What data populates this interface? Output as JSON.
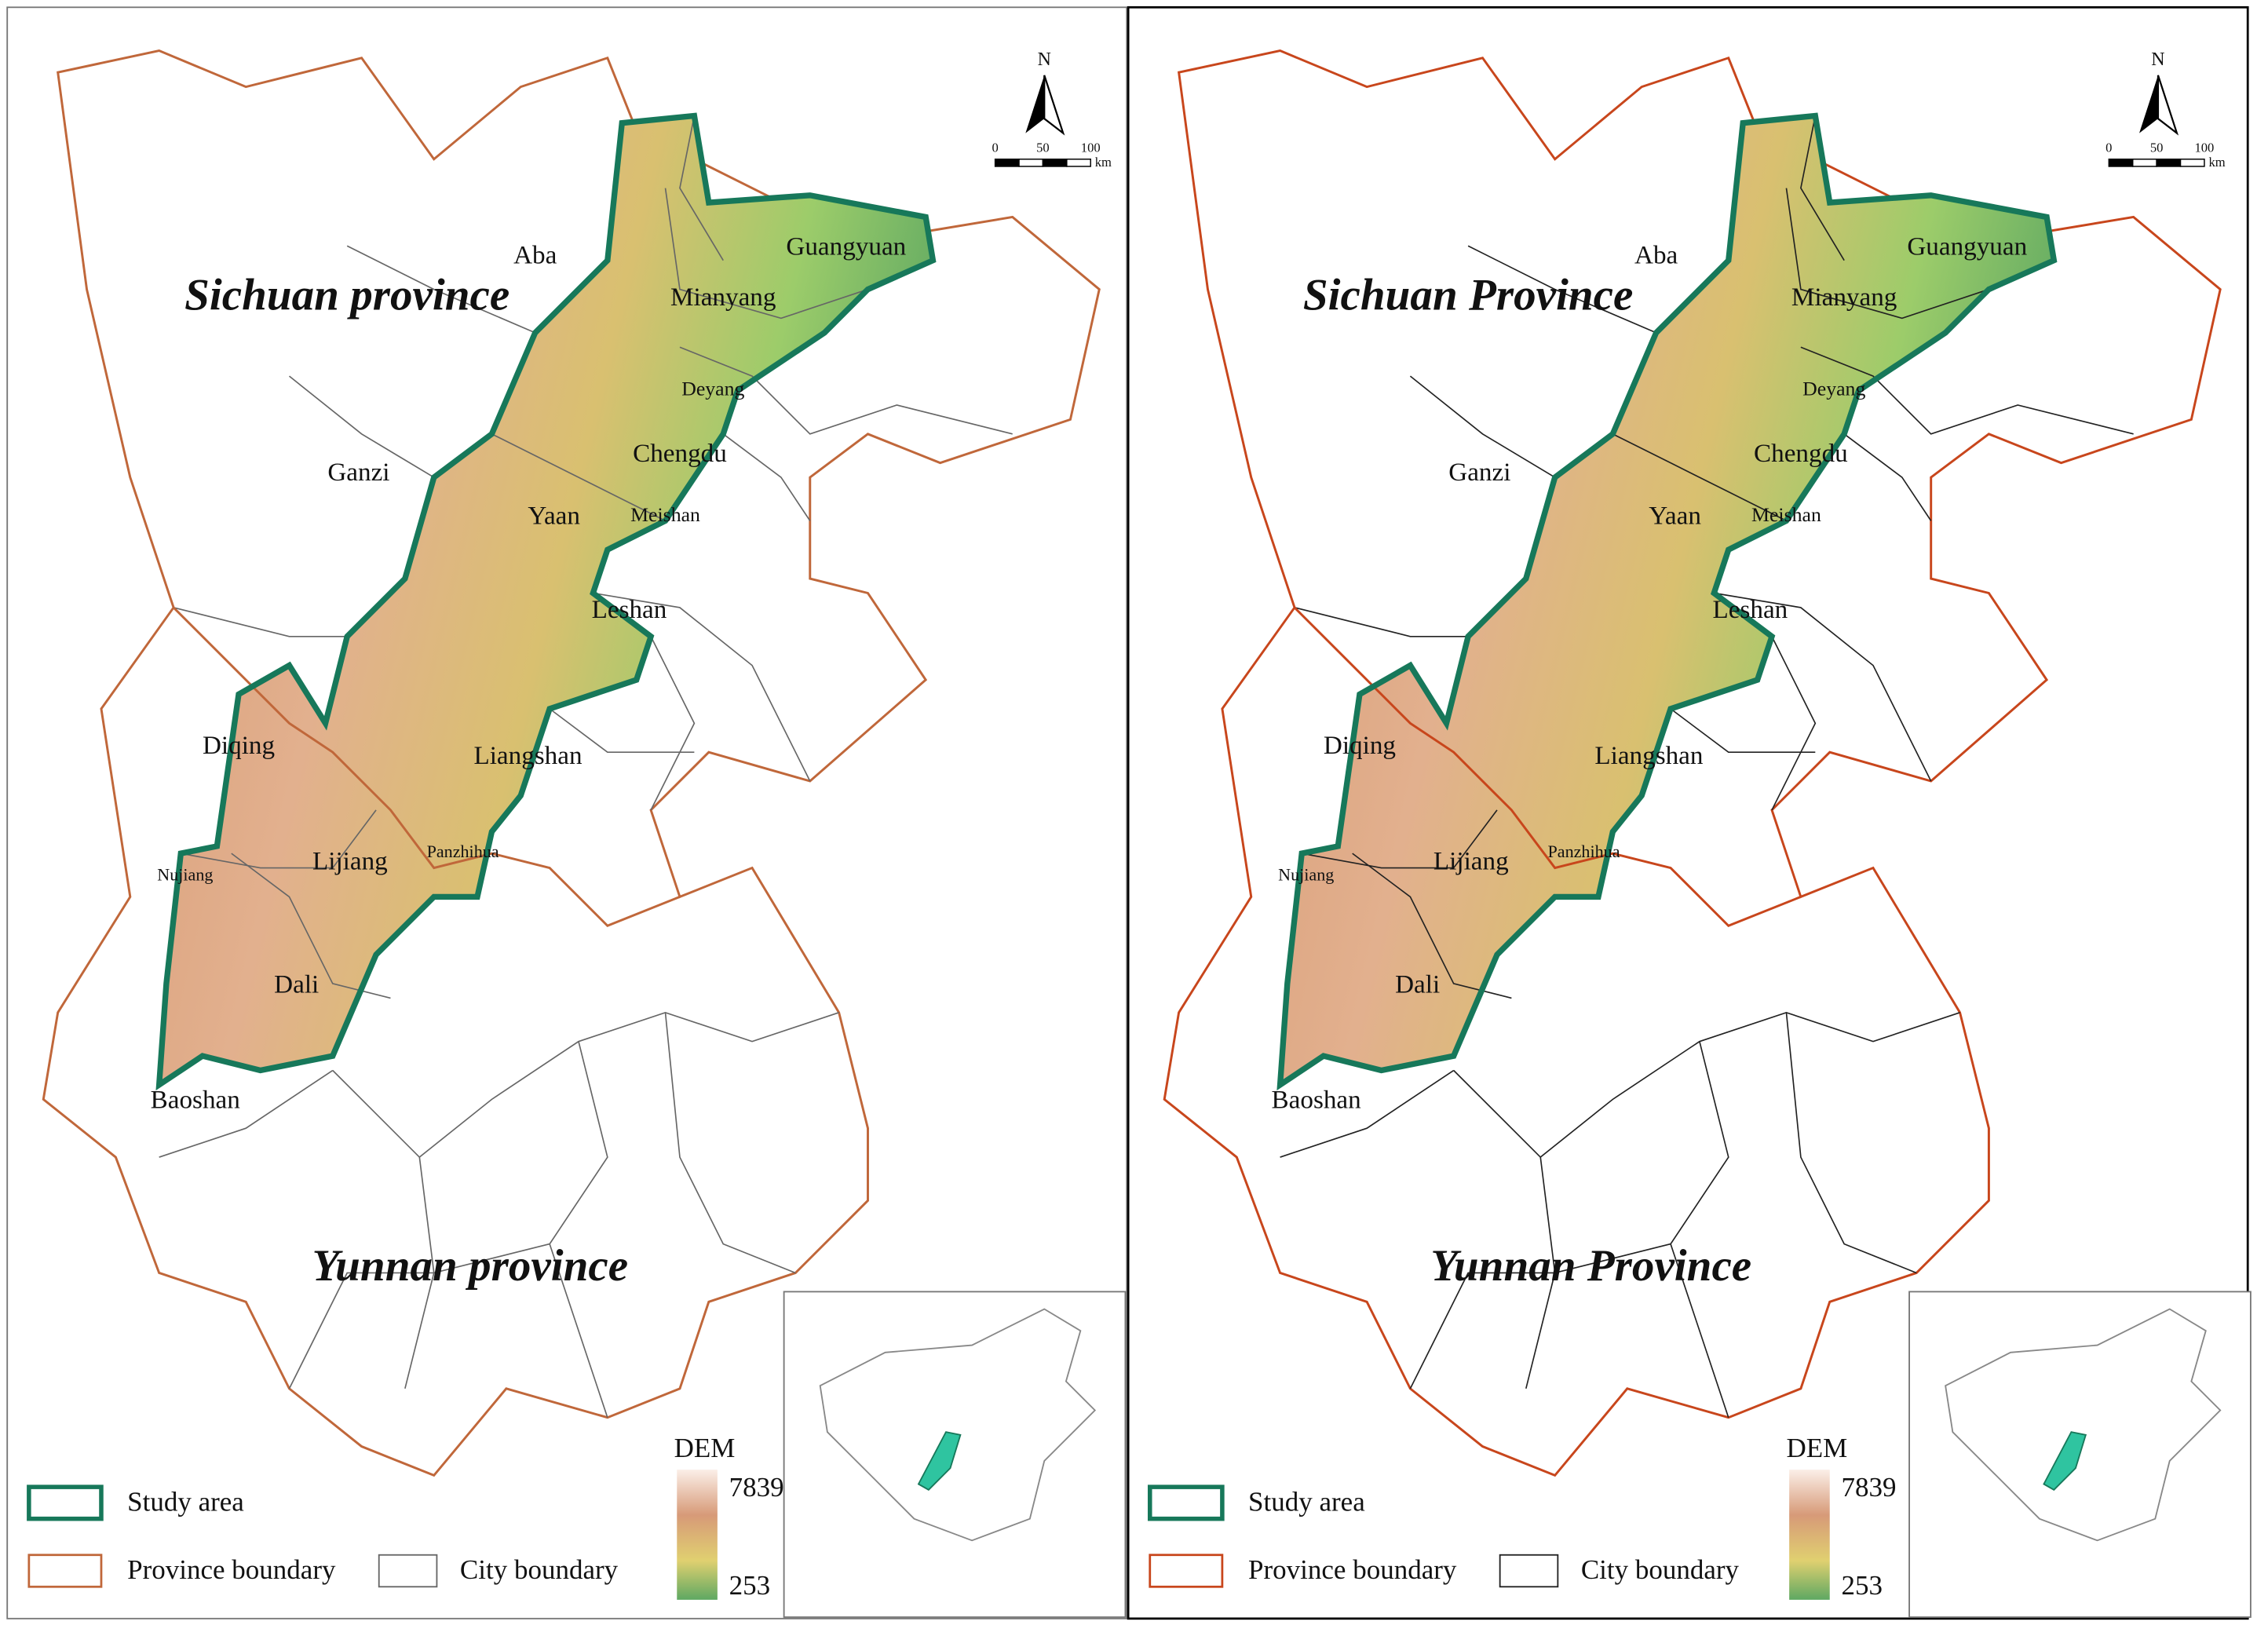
{
  "panels": [
    {
      "provinces": [
        "Sichuan province",
        "Yunnan province"
      ],
      "cities": [
        "Aba",
        "Guangyuan",
        "Mianyang",
        "Deyang",
        "Chengdu",
        "Ganzi",
        "Yaan",
        "Meishan",
        "Leshan",
        "Diqing",
        "Liangshan",
        "Lijiang",
        "Panzhihua",
        "Nujiang",
        "Dali",
        "Baoshan"
      ],
      "north": "N",
      "scale": {
        "ticks": [
          0,
          50,
          100
        ],
        "unit": "km"
      },
      "legend": {
        "study_area": "Study area",
        "province": "Province boundary",
        "city": "City boundary"
      },
      "dem": {
        "title": "DEM",
        "max": 7839,
        "min": 253
      }
    },
    {
      "provinces": [
        "Sichuan Province",
        "Yunnan Province"
      ],
      "cities": [
        "Aba",
        "Guangyuan",
        "Mianyang",
        "Deyang",
        "Chengdu",
        "Ganzi",
        "Yaan",
        "Meishan",
        "Leshan",
        "Diqing",
        "Liangshan",
        "Lijiang",
        "Panzhihua",
        "Nujiang",
        "Dali",
        "Baoshan"
      ],
      "north": "N",
      "scale": {
        "ticks": [
          0,
          50,
          100
        ],
        "unit": "km"
      },
      "legend": {
        "study_area": "Study area",
        "province": "Province boundary",
        "city": "City boundary"
      },
      "dem": {
        "title": "DEM",
        "max": 7839,
        "min": 253
      }
    }
  ]
}
